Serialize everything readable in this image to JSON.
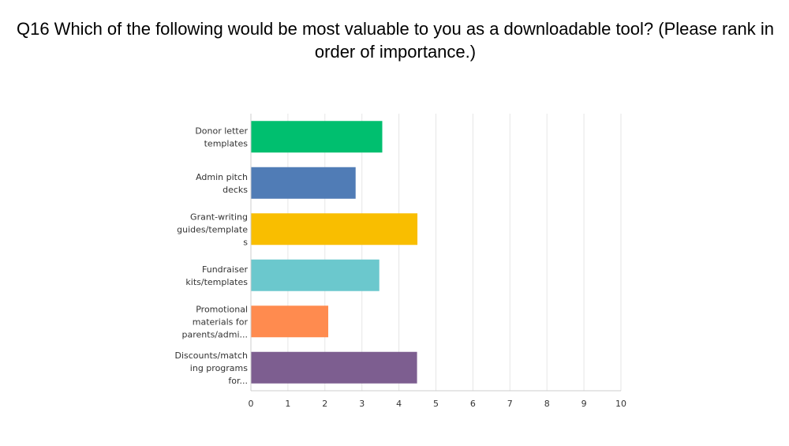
{
  "chart_data": {
    "type": "bar",
    "orientation": "horizontal",
    "title": "Q16 Which of the following would be most valuable to you as a downloadable tool? (Please rank in order of importance.)",
    "categories": [
      [
        "Donor letter",
        "templates"
      ],
      [
        "Admin pitch",
        "decks"
      ],
      [
        "Grant-writing",
        "guides/template",
        "s"
      ],
      [
        "Fundraiser",
        "kits/templates"
      ],
      [
        "Promotional",
        "materials for",
        "parents/admi..."
      ],
      [
        "Discounts/match",
        "ing programs",
        "for..."
      ]
    ],
    "values": [
      3.55,
      2.83,
      4.5,
      3.47,
      2.09,
      4.49
    ],
    "colors": [
      "#00bf6f",
      "#507cb6",
      "#f9be00",
      "#6bc8cd",
      "#ff8b4f",
      "#7d5e90"
    ],
    "xlim": [
      0,
      10
    ],
    "xticks": [
      0,
      1,
      2,
      3,
      4,
      5,
      6,
      7,
      8,
      9,
      10
    ],
    "grid": true
  }
}
